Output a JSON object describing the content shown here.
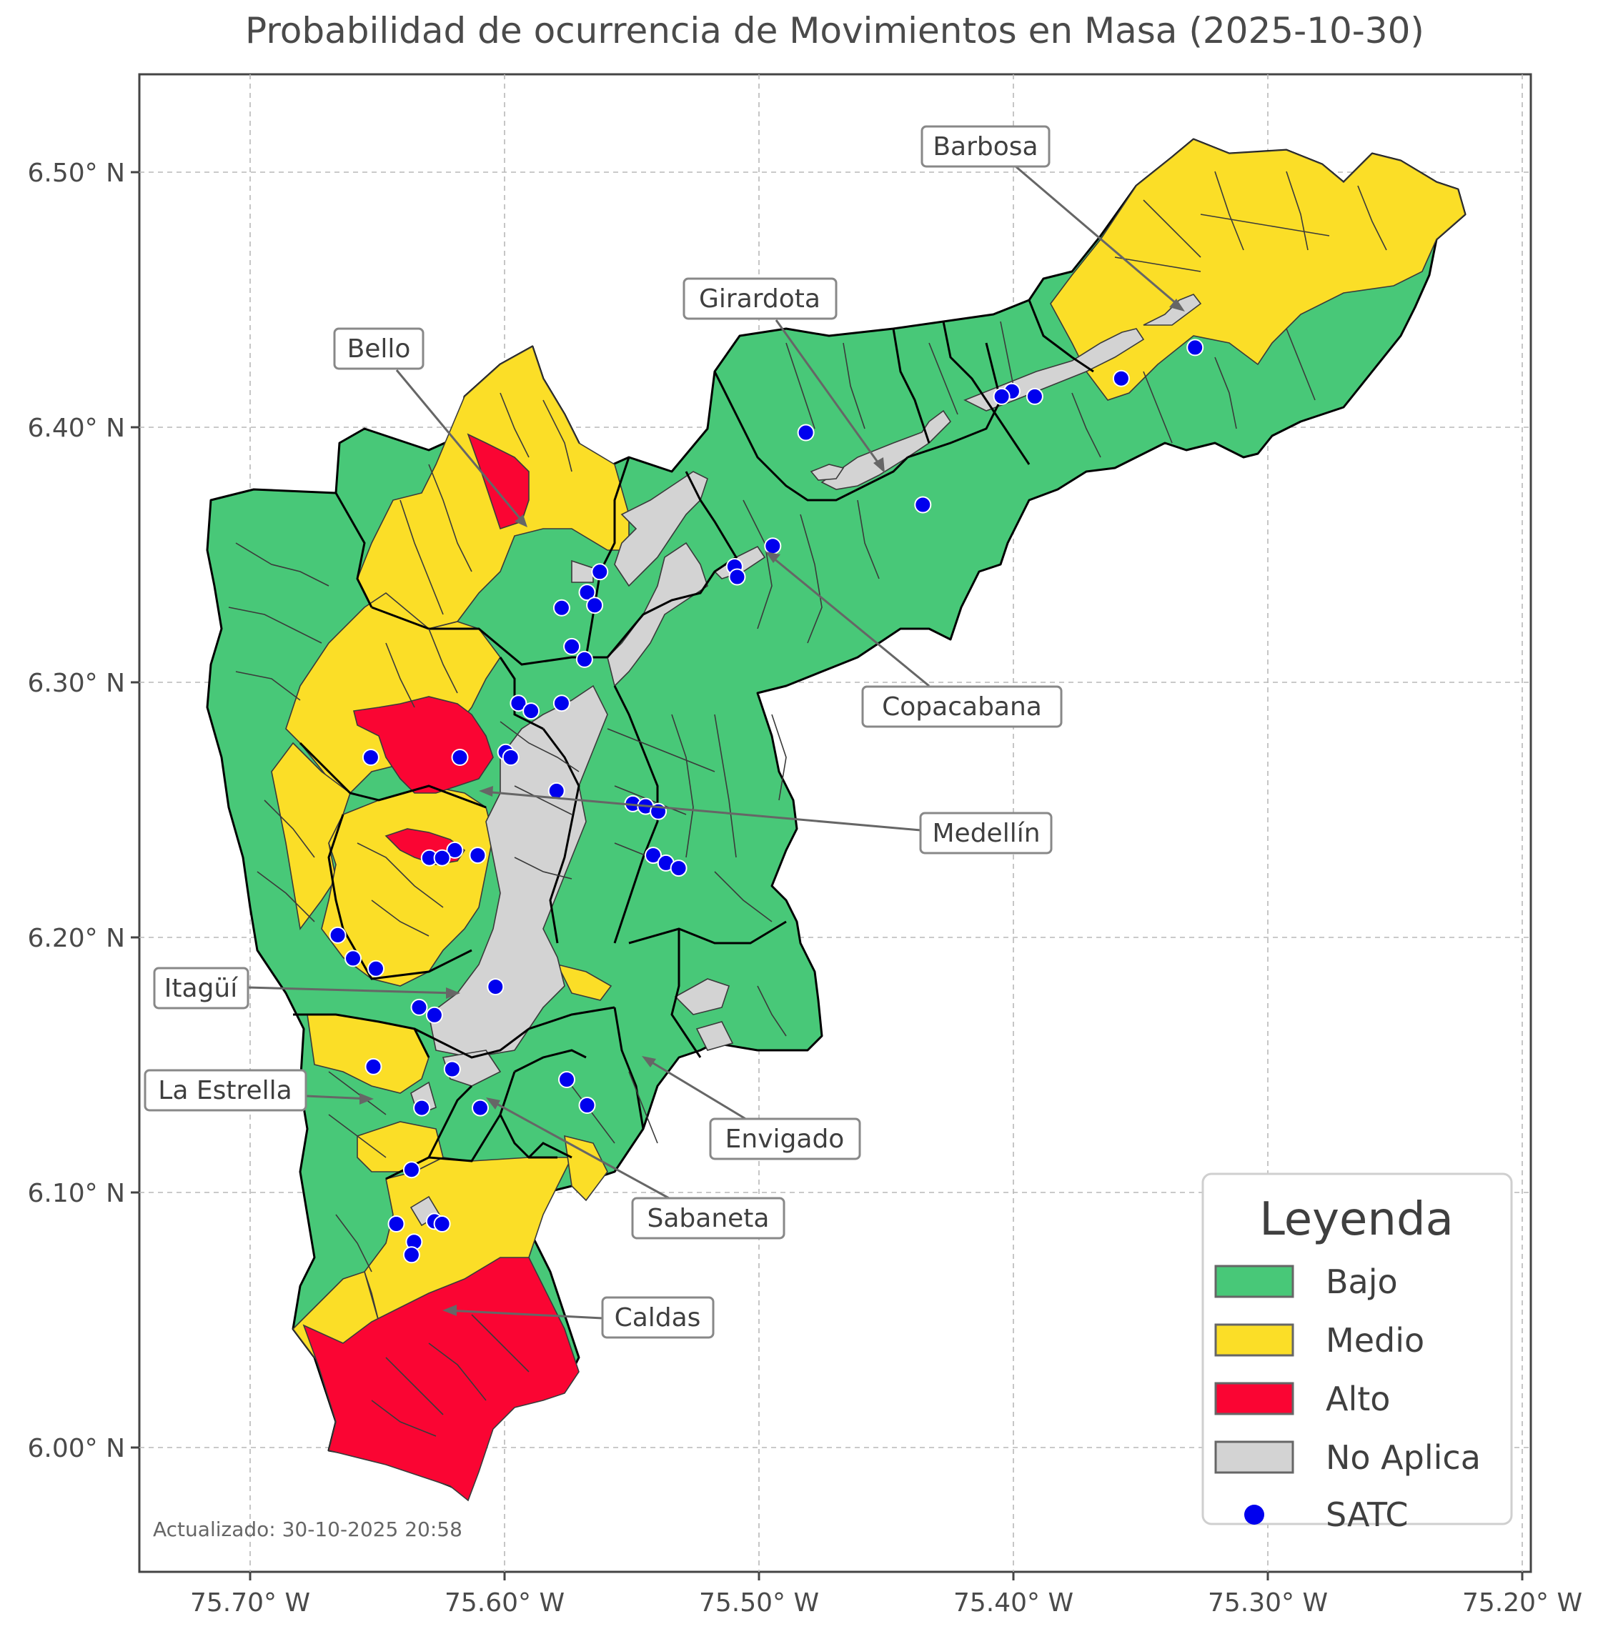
{
  "title": "Probabilidad de ocurrencia de Movimientos en Masa (2025-10-30)",
  "timestamp": "Actualizado: 30-10-2025 20:58",
  "colors": {
    "bajo": "#48c878",
    "medio": "#fbde27",
    "alto": "#fa0533",
    "no_aplica": "#d3d3d3",
    "satc": "#0000ee"
  },
  "axes": {
    "x_ticks": [
      "75.70° W",
      "75.60° W",
      "75.50° W",
      "75.40° W",
      "75.30° W",
      "75.20° W"
    ],
    "y_ticks": [
      "6.50° N",
      "6.40° N",
      "6.30° N",
      "6.20° N",
      "6.10° N",
      "6.00° N"
    ],
    "x_range": [
      -75.744,
      -75.197
    ],
    "y_range": [
      5.957,
      6.538
    ],
    "grid": true
  },
  "legend": {
    "title": "Leyenda",
    "items": [
      {
        "label": "Bajo",
        "kind": "bajo"
      },
      {
        "label": "Medio",
        "kind": "medio"
      },
      {
        "label": "Alto",
        "kind": "alto"
      },
      {
        "label": "No Aplica",
        "kind": "no_aplica"
      },
      {
        "label": "SATC",
        "kind": "satc"
      }
    ],
    "placement": "bottom-right"
  },
  "municipalities": [
    "Barbosa",
    "Girardota",
    "Bello",
    "Copacabana",
    "Medellín",
    "Itagüí",
    "La Estrella",
    "Envigado",
    "Sabaneta",
    "Caldas"
  ],
  "satc_stations": [
    [
      -75.329,
      6.432
    ],
    [
      -75.358,
      6.42
    ],
    [
      -75.392,
      6.413
    ],
    [
      -75.401,
      6.415
    ],
    [
      -75.405,
      6.413
    ],
    [
      -75.482,
      6.399
    ],
    [
      -75.436,
      6.371
    ],
    [
      -75.495,
      6.355
    ],
    [
      -75.51,
      6.347
    ],
    [
      -75.509,
      6.343
    ],
    [
      -75.563,
      6.345
    ],
    [
      -75.568,
      6.337
    ],
    [
      -75.578,
      6.331
    ],
    [
      -75.565,
      6.332
    ],
    [
      -75.574,
      6.316
    ],
    [
      -75.569,
      6.311
    ],
    [
      -75.595,
      6.294
    ],
    [
      -75.59,
      6.291
    ],
    [
      -75.578,
      6.294
    ],
    [
      -75.6,
      6.275
    ],
    [
      -75.653,
      6.273
    ],
    [
      -75.618,
      6.273
    ],
    [
      -75.598,
      6.273
    ],
    [
      -75.58,
      6.26
    ],
    [
      -75.55,
      6.255
    ],
    [
      -75.545,
      6.254
    ],
    [
      -75.54,
      6.252
    ],
    [
      -75.542,
      6.235
    ],
    [
      -75.537,
      6.232
    ],
    [
      -75.532,
      6.23
    ],
    [
      -75.62,
      6.237
    ],
    [
      -75.611,
      6.235
    ],
    [
      -75.63,
      6.234
    ],
    [
      -75.625,
      6.234
    ],
    [
      -75.666,
      6.204
    ],
    [
      -75.66,
      6.195
    ],
    [
      -75.651,
      6.191
    ],
    [
      -75.604,
      6.184
    ],
    [
      -75.634,
      6.176
    ],
    [
      -75.628,
      6.173
    ],
    [
      -75.652,
      6.153
    ],
    [
      -75.621,
      6.152
    ],
    [
      -75.576,
      6.148
    ],
    [
      -75.568,
      6.138
    ],
    [
      -75.633,
      6.137
    ],
    [
      -75.61,
      6.137
    ],
    [
      -75.637,
      6.113
    ],
    [
      -75.643,
      6.092
    ],
    [
      -75.628,
      6.093
    ],
    [
      -75.625,
      6.092
    ],
    [
      -75.636,
      6.085
    ],
    [
      -75.637,
      6.08
    ]
  ]
}
